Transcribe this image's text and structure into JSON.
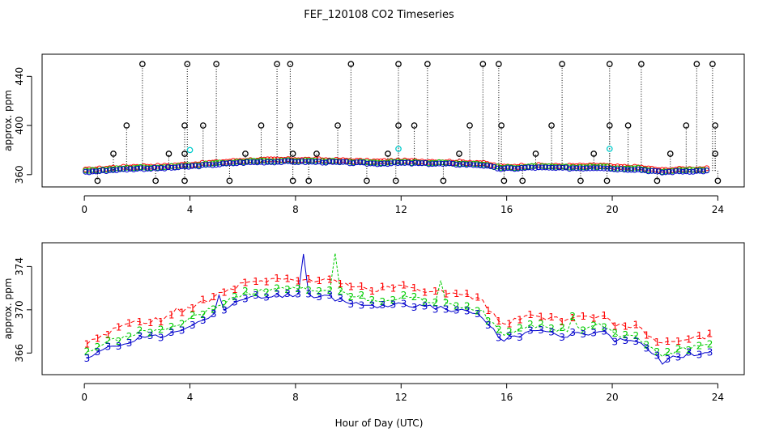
{
  "figure": {
    "title": "FEF_120108  CO2 Timeseries",
    "xlabel": "Hour of Day (UTC)"
  },
  "colors": {
    "background": "#ffffff",
    "series_1": "#ff0000",
    "series_2": "#00cc00",
    "series_3": "#0000cc",
    "outlier": "#000000",
    "cyan_marker": "#00cccc",
    "axes": "#000000"
  },
  "chart_data": [
    {
      "type": "scatter",
      "ylabel": "approx. ppm",
      "xlim": [
        -1.6,
        25.0
      ],
      "ylim": [
        350,
        458
      ],
      "x_ticks": [
        0,
        4,
        8,
        12,
        16,
        20,
        24
      ],
      "y_ticks": [
        360,
        400,
        440
      ],
      "grid": false,
      "legend": "none",
      "markers": "circles with vertical dotted drop lines",
      "outliers_high": {
        "value": 450,
        "x": [
          2.2,
          3.9,
          5.0,
          7.3,
          7.8,
          10.1,
          11.9,
          13.0,
          15.1,
          15.7,
          18.1,
          19.9,
          21.1,
          23.2,
          23.8
        ]
      },
      "outliers_mid": {
        "value": 400,
        "x": [
          1.6,
          3.8,
          4.5,
          6.7,
          7.8,
          9.6,
          11.9,
          12.5,
          14.6,
          15.8,
          17.7,
          19.9,
          20.6,
          22.8,
          23.9
        ]
      },
      "outliers_low": {
        "value": 355,
        "x": [
          0.5,
          2.7,
          3.8,
          5.5,
          7.9,
          8.5,
          10.7,
          11.8,
          13.6,
          15.9,
          16.6,
          18.8,
          19.8,
          21.7,
          24.0
        ]
      },
      "outliers_near": {
        "value": 377,
        "x": [
          1.1,
          3.2,
          3.8,
          6.1,
          7.9,
          8.8,
          11.5,
          14.2,
          17.1,
          19.3,
          22.2,
          23.9
        ]
      },
      "cyan_points": [
        {
          "x": 4.0,
          "y": 380
        },
        {
          "x": 11.9,
          "y": 381
        },
        {
          "x": 19.9,
          "y": 381
        }
      ]
    },
    {
      "type": "line",
      "ylabel": "approx. ppm",
      "xlim": [
        -1.6,
        25.0
      ],
      "ylim": [
        364.0,
        376.2
      ],
      "x_ticks": [
        0,
        4,
        8,
        12,
        16,
        20,
        24
      ],
      "y_ticks": [
        366,
        370,
        374
      ],
      "grid": false,
      "legend": "none",
      "point_labels": [
        "1",
        "2",
        "3"
      ],
      "series_markers": "each point drawn as its series digit; series 1 is the highest, series 3 the lowest",
      "trend": {
        "x": [
          0,
          1,
          2,
          3,
          4,
          5,
          6,
          7,
          8,
          9,
          10,
          11,
          12,
          13,
          14,
          15,
          15.8,
          16.5,
          17,
          18,
          19,
          19.6,
          20,
          21,
          21.9,
          22.5,
          23,
          23.8
        ],
        "y": [
          365.3,
          366.5,
          367.4,
          367.6,
          368.6,
          369.8,
          370.9,
          371.3,
          371.4,
          371.2,
          370.8,
          370.3,
          370.6,
          370.3,
          370.0,
          369.5,
          367.2,
          367.6,
          368.0,
          367.6,
          367.7,
          368.0,
          367.2,
          366.9,
          365.2,
          365.8,
          365.9,
          366.1
        ]
      },
      "offsets": [
        0.0,
        0.55,
        1.5
      ],
      "spikes": [
        {
          "x": 8.25,
          "delta": 3.7,
          "series": 3
        },
        {
          "x": 9.5,
          "delta": 3.9,
          "series": 2
        },
        {
          "x": 13.55,
          "delta": 1.8,
          "series": 2
        },
        {
          "x": 5.1,
          "delta": 1.4,
          "series": 3
        },
        {
          "x": 18.55,
          "delta": 1.3,
          "series": 2
        },
        {
          "x": 3.5,
          "delta": 0.8,
          "series": 1
        }
      ]
    }
  ]
}
